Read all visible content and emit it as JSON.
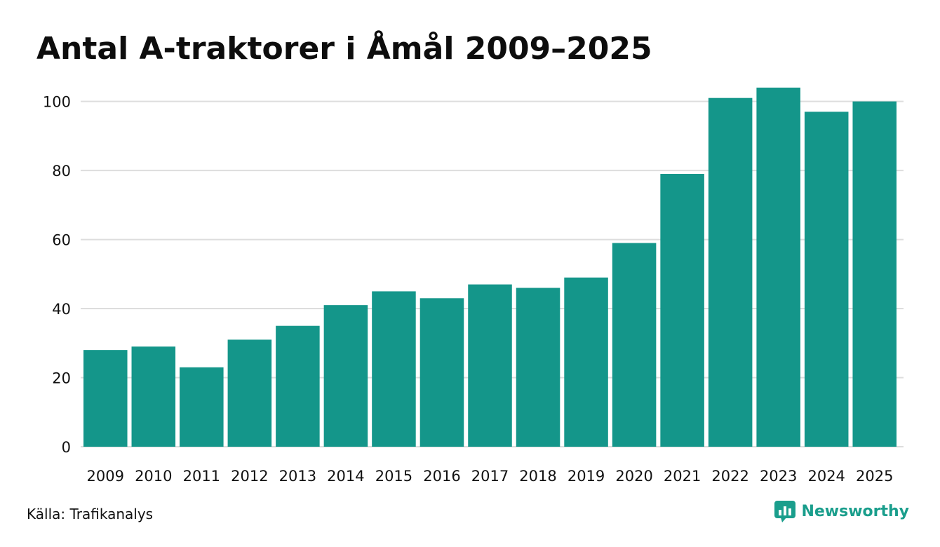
{
  "chart_data": {
    "type": "bar",
    "title": "Antal A-traktorer i Åmål 2009–2025",
    "categories": [
      "2009",
      "2010",
      "2011",
      "2012",
      "2013",
      "2014",
      "2015",
      "2016",
      "2017",
      "2018",
      "2019",
      "2020",
      "2021",
      "2022",
      "2023",
      "2024",
      "2025"
    ],
    "values": [
      28,
      29,
      23,
      31,
      35,
      41,
      45,
      43,
      47,
      46,
      49,
      59,
      79,
      101,
      104,
      97,
      100
    ],
    "yticks": [
      "0",
      "20",
      "40",
      "60",
      "80",
      "100"
    ],
    "ylim": [
      0,
      105
    ],
    "grid": true,
    "xlabel": "",
    "ylabel": "",
    "bar_color": "#14968a",
    "grid_color": "#dddddd"
  },
  "footer": {
    "source": "Källa: Trafikanalys",
    "brand": "Newsworthy",
    "brand_icon": "newsworthy-logo-icon",
    "brand_color": "#1a9e8c"
  }
}
